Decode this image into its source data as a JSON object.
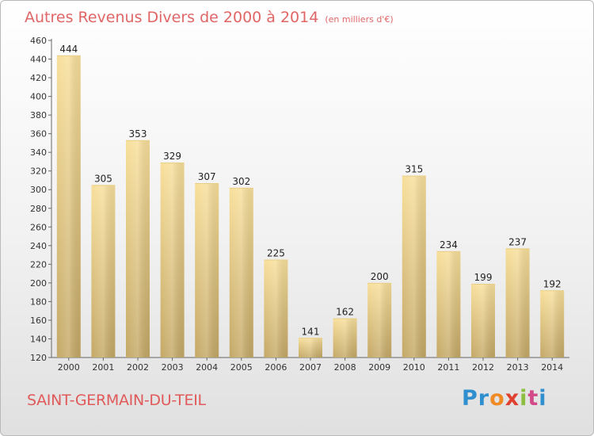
{
  "title": "Autres Revenus Divers de 2000 à 2014",
  "subtitle": "(en milliers d'€)",
  "place_name": "SAINT-GERMAIN-DU-TEIL",
  "logo_text": "Proxiti",
  "colors": {
    "bar_light": "#f7dc95",
    "bar_dark": "#c6ab6a",
    "title": "#e06666",
    "place": "#e05a5a"
  },
  "chart_data": {
    "type": "bar",
    "categories": [
      "2000",
      "2001",
      "2002",
      "2003",
      "2004",
      "2005",
      "2006",
      "2007",
      "2008",
      "2009",
      "2010",
      "2011",
      "2012",
      "2013",
      "2014"
    ],
    "values": [
      444,
      305,
      353,
      329,
      307,
      302,
      225,
      141,
      162,
      200,
      315,
      234,
      199,
      237,
      192
    ],
    "ylim": [
      120,
      460
    ],
    "yticks": [
      120,
      140,
      160,
      180,
      200,
      220,
      240,
      260,
      280,
      300,
      320,
      340,
      360,
      380,
      400,
      420,
      440,
      460
    ],
    "grid": false,
    "data_labels": true
  }
}
